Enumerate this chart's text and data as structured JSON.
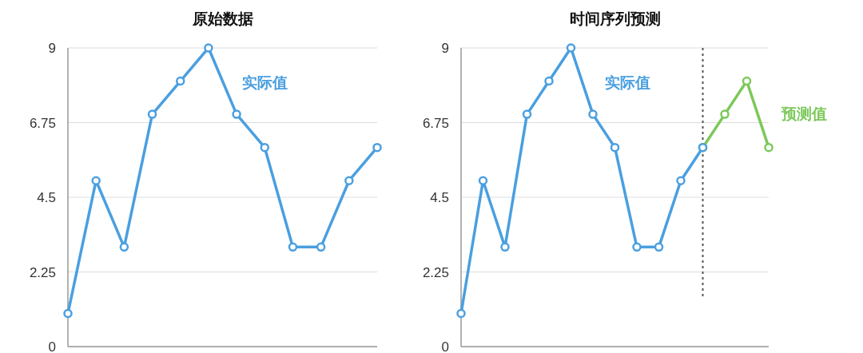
{
  "chart_data": [
    {
      "type": "line",
      "title": "原始数据",
      "categories": [
        null,
        null,
        null,
        null,
        null,
        null,
        null,
        null,
        null,
        null,
        null,
        null
      ],
      "series": [
        {
          "name": "实际值",
          "color": "#4a9fe0",
          "values": [
            1,
            5,
            3,
            7,
            8,
            9,
            7,
            6,
            3,
            3,
            5,
            6
          ]
        }
      ],
      "ylim": [
        0,
        9
      ],
      "yticks": [
        0,
        2.25,
        4.5,
        6.75,
        9
      ],
      "grid": "y",
      "marker": "circle",
      "line_style": "solid",
      "legend": false
    },
    {
      "type": "line",
      "title": "时间序列预测",
      "categories": [
        null,
        null,
        null,
        null,
        null,
        null,
        null,
        null,
        null,
        null,
        null,
        null,
        null,
        null,
        null
      ],
      "series": [
        {
          "name": "实际值",
          "color": "#4a9fe0",
          "values": [
            1,
            5,
            3,
            7,
            8,
            9,
            7,
            6,
            3,
            3,
            5,
            6,
            null,
            null,
            null
          ]
        },
        {
          "name": "预测值",
          "color": "#7cc85a",
          "values": [
            null,
            null,
            null,
            null,
            null,
            null,
            null,
            null,
            null,
            null,
            null,
            6,
            7,
            8,
            6
          ]
        }
      ],
      "ylim": [
        0,
        9
      ],
      "yticks": [
        0,
        2.25,
        4.5,
        6.75,
        9
      ],
      "grid": "y",
      "marker": "circle",
      "line_style": "solid",
      "legend": false
    }
  ]
}
